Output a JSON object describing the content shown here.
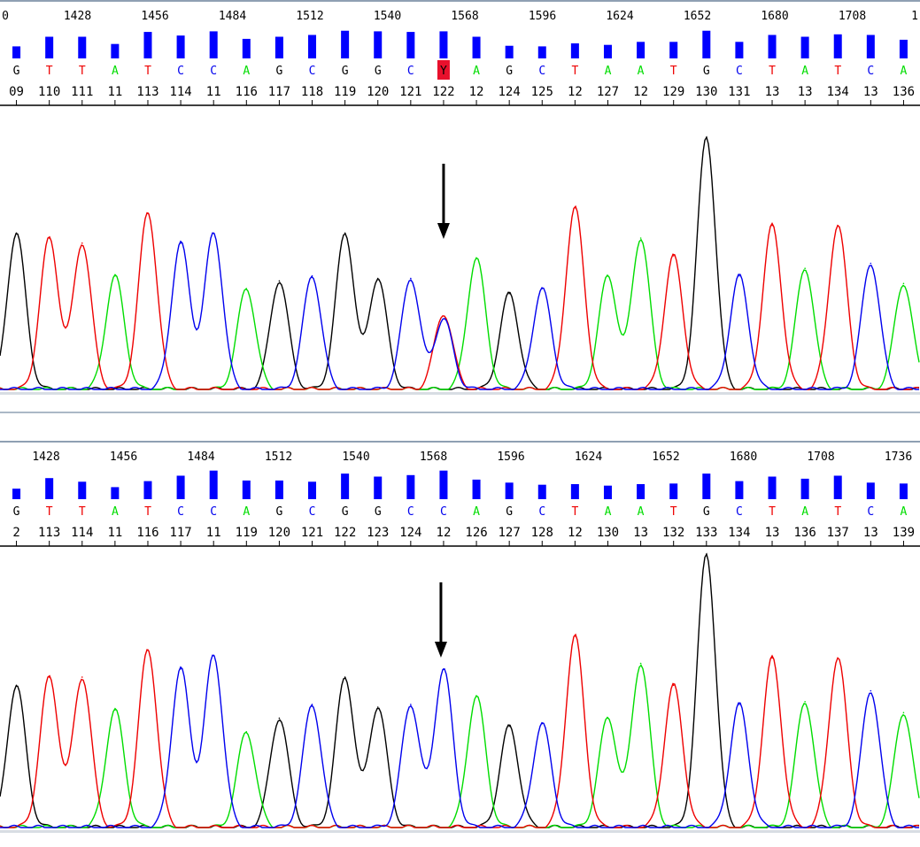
{
  "colors": {
    "A": "#00dd00",
    "C": "#0000ee",
    "G": "#000000",
    "T": "#ee0000",
    "qual": "#0000ff",
    "highlight": "#e8102c"
  },
  "chart_data": [
    {
      "type": "line",
      "title": "",
      "positions": [
        "0",
        "1428",
        "1456",
        "1484",
        "1512",
        "1540",
        "1568",
        "1596",
        "1624",
        "1652",
        "1680",
        "1708",
        "1"
      ],
      "bases": [
        "G",
        "T",
        "T",
        "A",
        "T",
        "C",
        "C",
        "A",
        "G",
        "C",
        "G",
        "G",
        "C",
        "Y",
        "A",
        "G",
        "C",
        "T",
        "A",
        "A",
        "T",
        "G",
        "C",
        "T",
        "A",
        "T",
        "C",
        "A"
      ],
      "quality": [
        0.4,
        0.72,
        0.72,
        0.48,
        0.88,
        0.76,
        0.9,
        0.65,
        0.72,
        0.78,
        0.92,
        0.9,
        0.88,
        0.9,
        0.72,
        0.42,
        0.4,
        0.5,
        0.45,
        0.55,
        0.55,
        0.92,
        0.55,
        0.78,
        0.72,
        0.8,
        0.78,
        0.62
      ],
      "base_index_labels": [
        "09",
        "110",
        "111",
        "11",
        "113",
        "114",
        "11",
        "116",
        "117",
        "118",
        "119",
        "120",
        "121",
        "122",
        "12",
        "124",
        "125",
        "12",
        "127",
        "12",
        "129",
        "130",
        "131",
        "13",
        "13",
        "134",
        "13",
        "136"
      ],
      "highlighted_base": "Y",
      "peak_heights": [
        0.62,
        0.6,
        0.58,
        0.45,
        0.7,
        0.58,
        0.62,
        0.4,
        0.43,
        0.45,
        0.62,
        0.44,
        0.44,
        0.28,
        0.52,
        0.38,
        0.4,
        0.72,
        0.45,
        0.6,
        0.53,
        1.0,
        0.45,
        0.65,
        0.48,
        0.65,
        0.5,
        0.42
      ],
      "peak_bases": [
        "G",
        "T",
        "T",
        "A",
        "T",
        "C",
        "C",
        "A",
        "G",
        "C",
        "G",
        "G",
        "C",
        "C",
        "A",
        "G",
        "C",
        "T",
        "A",
        "A",
        "T",
        "G",
        "C",
        "T",
        "A",
        "T",
        "C",
        "A"
      ],
      "secondary_peaks": [
        {
          "after_index": 13,
          "base": "T",
          "height": 0.3
        }
      ],
      "marker": "down-arrow"
    },
    {
      "type": "line",
      "title": "",
      "positions": [
        "1428",
        "1456",
        "1484",
        "1512",
        "1540",
        "1568",
        "1596",
        "1624",
        "1652",
        "1680",
        "1708",
        "1736"
      ],
      "bases": [
        "G",
        "T",
        "T",
        "A",
        "T",
        "C",
        "C",
        "A",
        "G",
        "C",
        "G",
        "G",
        "C",
        "C",
        "A",
        "G",
        "C",
        "T",
        "A",
        "A",
        "T",
        "G",
        "C",
        "T",
        "A",
        "T",
        "C",
        "A"
      ],
      "quality": [
        0.35,
        0.7,
        0.58,
        0.4,
        0.6,
        0.78,
        0.95,
        0.62,
        0.62,
        0.58,
        0.85,
        0.75,
        0.8,
        0.95,
        0.65,
        0.55,
        0.48,
        0.5,
        0.45,
        0.5,
        0.52,
        0.85,
        0.6,
        0.75,
        0.68,
        0.78,
        0.55,
        0.52
      ],
      "base_index_labels": [
        "2",
        "113",
        "114",
        "11",
        "116",
        "117",
        "11",
        "119",
        "120",
        "121",
        "122",
        "123",
        "124",
        "12",
        "126",
        "127",
        "128",
        "12",
        "130",
        "13",
        "132",
        "133",
        "134",
        "13",
        "136",
        "137",
        "13",
        "139"
      ],
      "peak_heights": [
        0.52,
        0.55,
        0.55,
        0.43,
        0.65,
        0.58,
        0.63,
        0.35,
        0.4,
        0.45,
        0.55,
        0.44,
        0.45,
        0.58,
        0.48,
        0.37,
        0.38,
        0.7,
        0.4,
        0.6,
        0.52,
        1.0,
        0.45,
        0.62,
        0.46,
        0.62,
        0.5,
        0.42
      ],
      "peak_bases": [
        "G",
        "T",
        "T",
        "A",
        "T",
        "C",
        "C",
        "A",
        "G",
        "C",
        "G",
        "G",
        "C",
        "C",
        "A",
        "G",
        "C",
        "T",
        "A",
        "A",
        "T",
        "G",
        "C",
        "T",
        "A",
        "T",
        "C",
        "A"
      ],
      "marker": "down-arrow"
    }
  ]
}
